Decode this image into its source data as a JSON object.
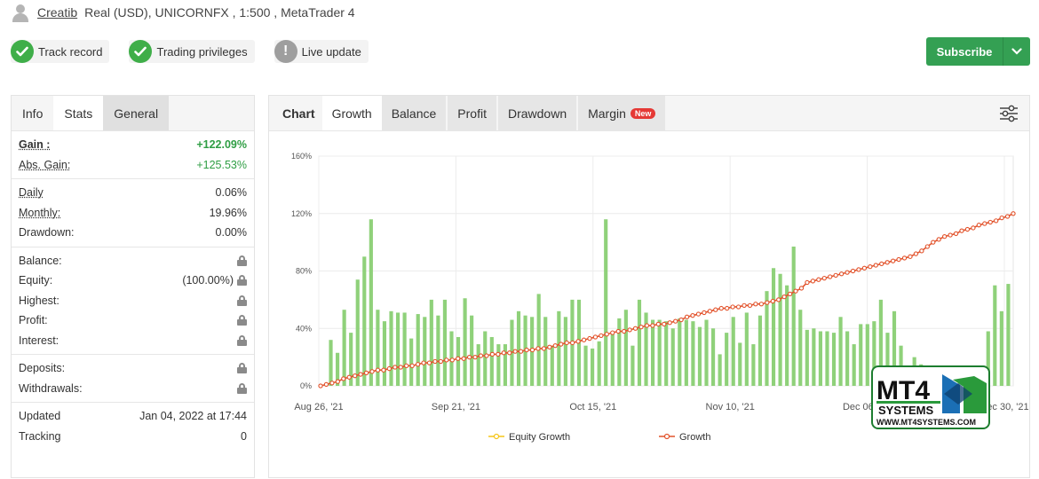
{
  "header": {
    "username": "Creatib",
    "account_info": "Real (USD), UNICORNFX , 1:500 , MetaTrader 4"
  },
  "badges": [
    {
      "label": "Track record",
      "status": "ok"
    },
    {
      "label": "Trading privileges",
      "status": "ok"
    },
    {
      "label": "Live update",
      "status": "info"
    }
  ],
  "subscribe": {
    "label": "Subscribe"
  },
  "stats_tabs": [
    "Info",
    "Stats",
    "General"
  ],
  "stats": {
    "gain": {
      "label": "Gain :",
      "value": "+122.09%"
    },
    "abs_gain": {
      "label": "Abs. Gain:",
      "value": "+125.53%"
    },
    "daily": {
      "label": "Daily",
      "value": "0.06%"
    },
    "monthly": {
      "label": "Monthly:",
      "value": "19.96%"
    },
    "drawdown": {
      "label": "Drawdown:",
      "value": "0.00%"
    },
    "balance": {
      "label": "Balance:"
    },
    "equity": {
      "label": "Equity:",
      "value": "(100.00%)"
    },
    "highest": {
      "label": "Highest:"
    },
    "profit": {
      "label": "Profit:"
    },
    "interest": {
      "label": "Interest:"
    },
    "deposits": {
      "label": "Deposits:"
    },
    "withdrawals": {
      "label": "Withdrawals:"
    },
    "updated": {
      "label": "Updated",
      "value": "Jan 04, 2022 at 17:44"
    },
    "tracking": {
      "label": "Tracking",
      "value": "0"
    }
  },
  "chart_tabs": {
    "title": "Chart",
    "items": [
      "Growth",
      "Balance",
      "Profit",
      "Drawdown",
      "Margin"
    ],
    "new_badge": "New"
  },
  "watermark": {
    "brand": "MT4",
    "sub": "SYSTEMS",
    "url": "WWW.MT4SYSTEMS.COM"
  },
  "colors": {
    "green": "#34a053",
    "bar": "#8fd17a",
    "line": "#e2532c",
    "equity": "#f5c518"
  },
  "chart_data": {
    "type": "bar",
    "ylim": [
      0,
      160
    ],
    "y_ticks": [
      "0%",
      "40%",
      "80%",
      "120%",
      "160%"
    ],
    "x_tick_labels": [
      "Aug 26, '21",
      "Sep 21, '21",
      "Oct 15, '21",
      "Nov 10, '21",
      "Dec 06, '21",
      "Dec 30, '21"
    ],
    "legend": [
      "Equity Growth",
      "Growth"
    ],
    "series": [
      {
        "name": "Growth",
        "type": "line",
        "values": [
          0,
          1,
          2,
          3,
          5,
          6,
          7,
          8,
          9,
          10,
          11,
          11,
          12,
          13,
          13,
          14,
          14,
          15,
          16,
          16,
          17,
          17,
          18,
          18,
          19,
          19,
          20,
          20,
          21,
          21,
          22,
          22,
          23,
          23,
          24,
          24,
          25,
          25,
          26,
          26,
          27,
          28,
          29,
          30,
          30,
          31,
          32,
          33,
          34,
          35,
          36,
          37,
          38,
          38,
          39,
          40,
          41,
          42,
          42,
          43,
          43,
          44,
          45,
          46,
          48,
          49,
          50,
          51,
          52,
          53,
          54,
          54,
          55,
          55,
          56,
          56,
          57,
          57,
          58,
          59,
          60,
          62,
          64,
          66,
          68,
          72,
          73,
          74,
          75,
          76,
          77,
          78,
          79,
          80,
          81,
          82,
          83,
          84,
          85,
          86,
          87,
          88,
          89,
          90,
          92,
          94,
          97,
          100,
          102,
          104,
          105,
          106,
          108,
          109,
          110,
          112,
          113,
          114,
          115,
          117,
          118,
          120
        ]
      },
      {
        "name": "daily gain",
        "type": "bar",
        "values": [
          0,
          32,
          23,
          53,
          37,
          74,
          90,
          116,
          53,
          45,
          52,
          51,
          51,
          33,
          50,
          48,
          60,
          49,
          60,
          38,
          34,
          61,
          49,
          29,
          38,
          34,
          29,
          29,
          46,
          52,
          49,
          48,
          64,
          48,
          28,
          52,
          48,
          60,
          60,
          28,
          26,
          31,
          116,
          37,
          47,
          53,
          28,
          60,
          51,
          46,
          46,
          45,
          40,
          47,
          46,
          45,
          41,
          46,
          40,
          22,
          37,
          48,
          30,
          51,
          29,
          49,
          66,
          82,
          78,
          70,
          97,
          53,
          39,
          40,
          38,
          38,
          37,
          48,
          38,
          29,
          43,
          43,
          45,
          60,
          37,
          52,
          28,
          14,
          20,
          15,
          0,
          12,
          10,
          8,
          12,
          10,
          8,
          5,
          0,
          38,
          70,
          52,
          71
        ]
      }
    ]
  }
}
